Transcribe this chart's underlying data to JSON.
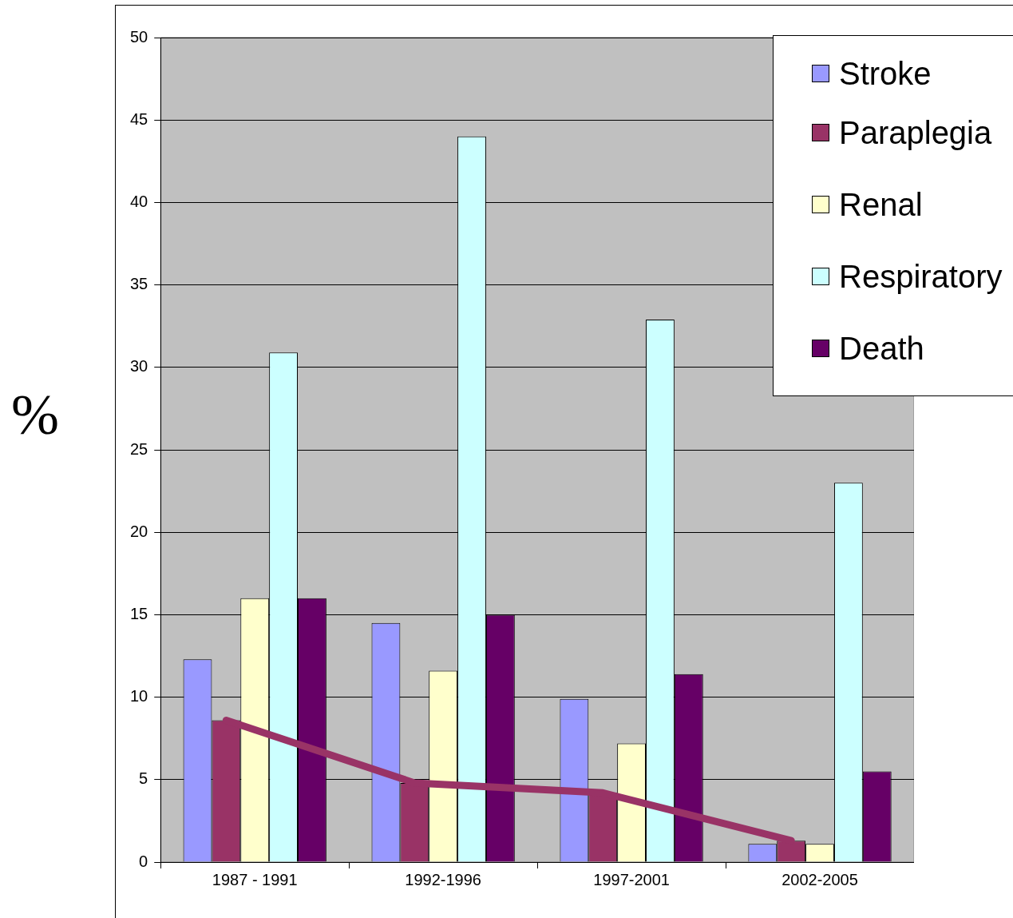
{
  "chart_data": {
    "type": "bar",
    "ylabel": "%",
    "categories": [
      "1987 - 1991",
      "1992-1996",
      "1997-2001",
      "2002-2005"
    ],
    "series": [
      {
        "name": "Stroke",
        "color": "#9999ff",
        "values": [
          12.3,
          14.5,
          9.9,
          1.1
        ]
      },
      {
        "name": "Paraplegia",
        "color": "#993366",
        "values": [
          8.6,
          4.8,
          4.2,
          1.3
        ]
      },
      {
        "name": "Renal",
        "color": "#ffffcc",
        "values": [
          16.0,
          11.6,
          7.2,
          1.1
        ]
      },
      {
        "name": "Respiratory",
        "color": "#ccffff",
        "values": [
          30.9,
          44.0,
          32.9,
          23.0
        ]
      },
      {
        "name": "Death",
        "color": "#660066",
        "values": [
          16.0,
          15.0,
          11.4,
          5.5
        ]
      },
      {
        "type": "line",
        "color": "#993366",
        "values": [
          8.6,
          4.8,
          4.2,
          1.3
        ]
      }
    ],
    "ylim": [
      0,
      50
    ],
    "yticks": [
      0,
      5,
      10,
      15,
      20,
      25,
      30,
      35,
      40,
      45,
      50
    ],
    "grid": "y",
    "legend": "top right"
  }
}
